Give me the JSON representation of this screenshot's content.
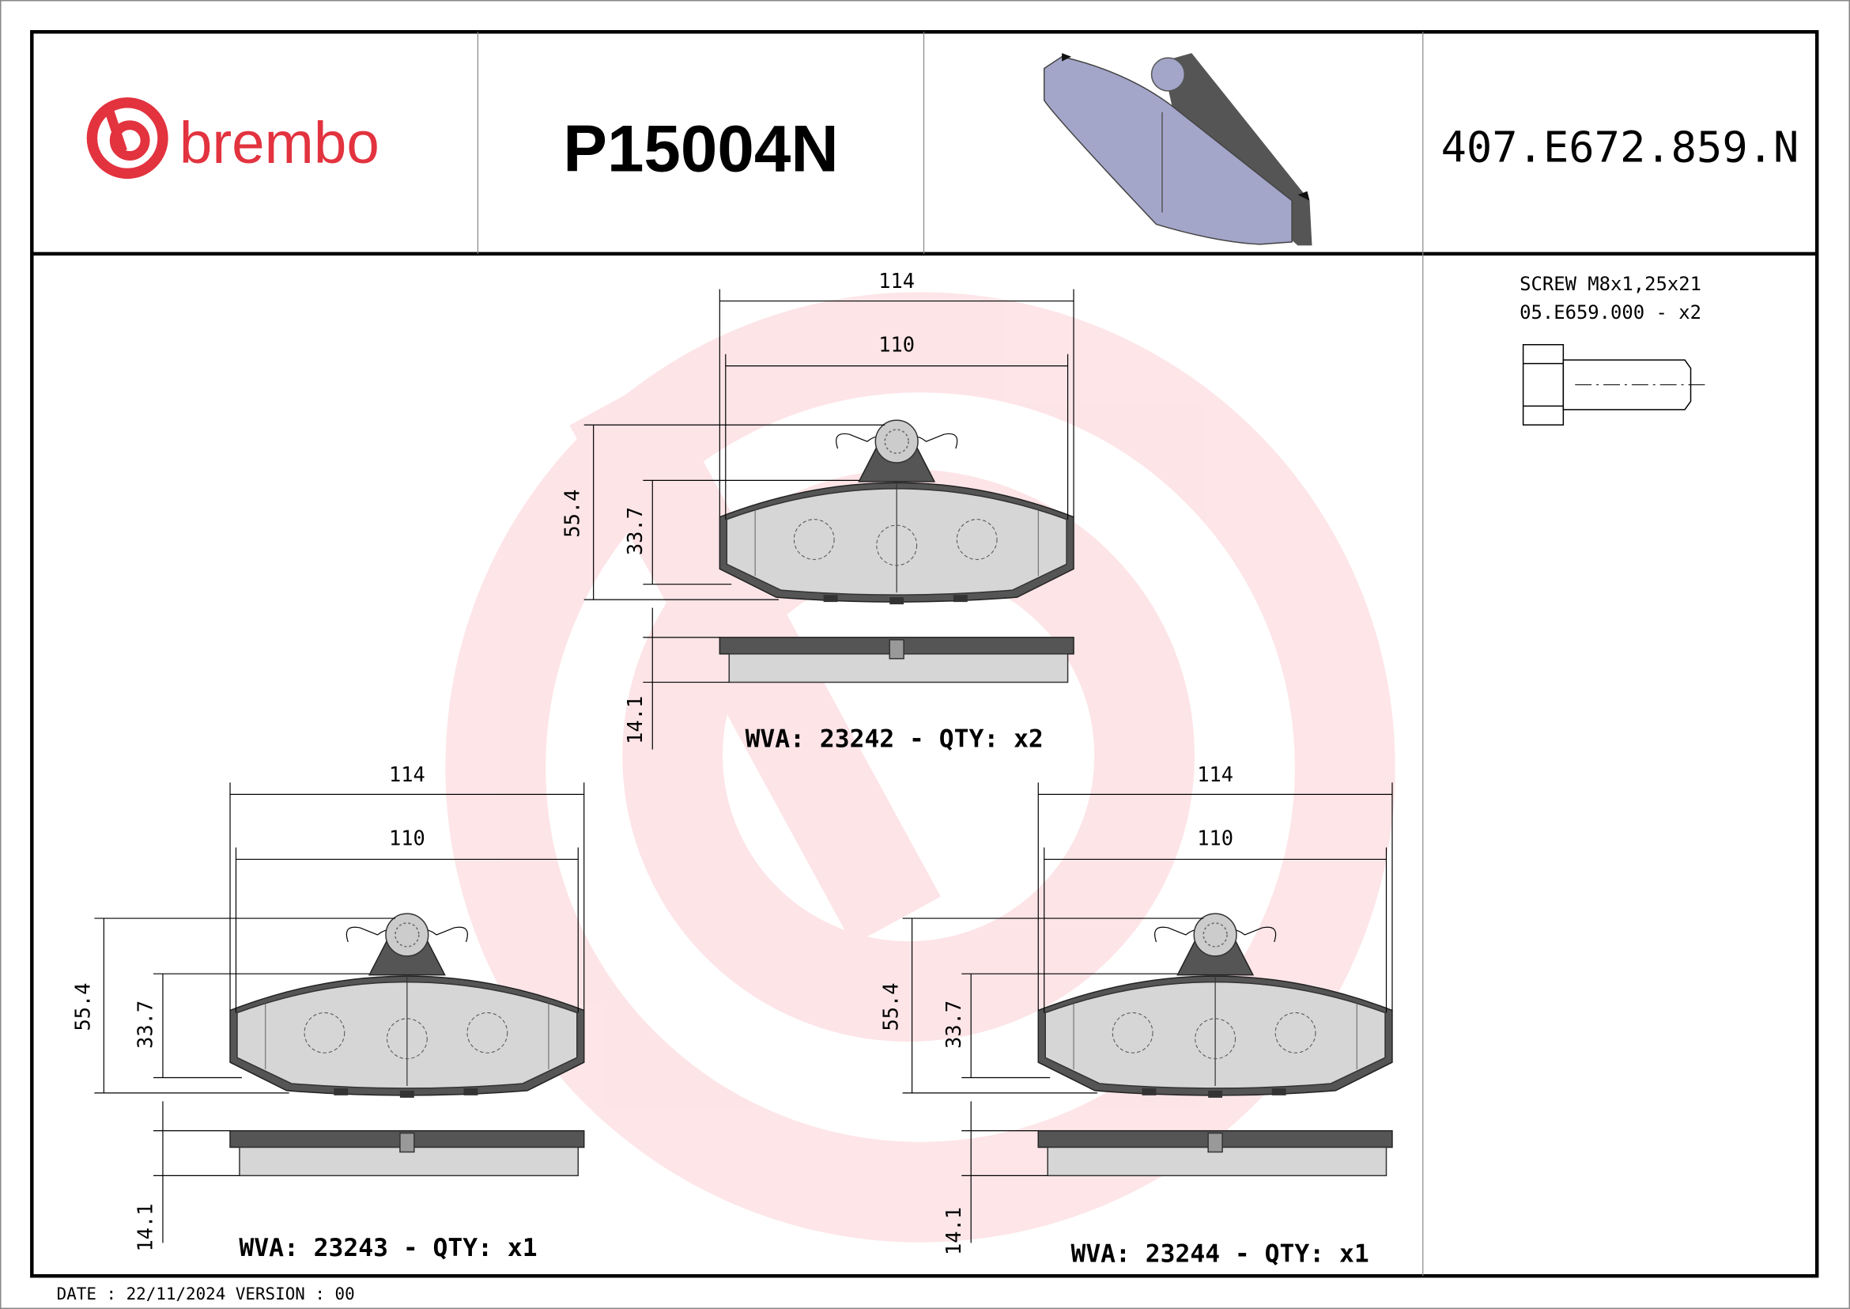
{
  "header": {
    "logo_text": "brembo",
    "part_number": "P15004N",
    "reference": "407.E672.859.N"
  },
  "accessory": {
    "line1": "SCREW M8x1,25x21",
    "line2": "05.E659.000  - x2"
  },
  "pads": [
    {
      "width_outer": "114",
      "width_inner": "110",
      "height_total": "55.4",
      "height_plate": "33.7",
      "thickness": "14.1",
      "wva_label": "WVA: 23242 - QTY: x2"
    },
    {
      "width_outer": "114",
      "width_inner": "110",
      "height_total": "55.4",
      "height_plate": "33.7",
      "thickness": "14.1",
      "wva_label": "WVA: 23243 - QTY: x1"
    },
    {
      "width_outer": "114",
      "width_inner": "110",
      "height_total": "55.4",
      "height_plate": "33.7",
      "thickness": "14.1",
      "wva_label": "WVA: 23244 - QTY: x1"
    }
  ],
  "footer": {
    "date_version": "DATE : 22/11/2024 VERSION : 00"
  },
  "colors": {
    "brand_red": "#e2333f",
    "watermark_pink": "#fde2e5",
    "pad_blue": "#a3a6c9"
  }
}
